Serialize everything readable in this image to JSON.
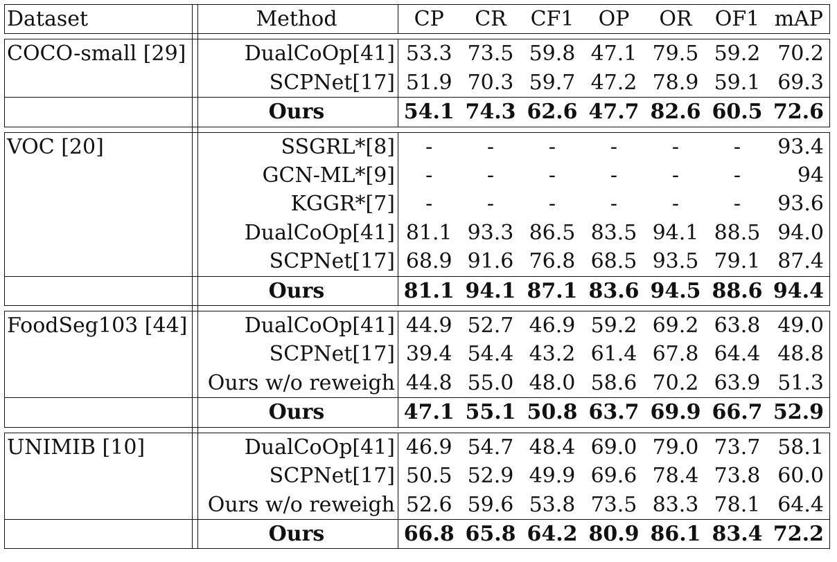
{
  "header": {
    "dataset": "Dataset",
    "method": "Method",
    "metrics": [
      "CP",
      "CR",
      "CF1",
      "OP",
      "OR",
      "OF1",
      "mAP"
    ]
  },
  "groups": [
    {
      "dataset": "COCO-small [29]",
      "rows": [
        {
          "method": "DualCoOp[41]",
          "values": [
            "53.3",
            "73.5",
            "59.8",
            "47.1",
            "79.5",
            "59.2",
            "70.2"
          ]
        },
        {
          "method": "SCPNet[17]",
          "values": [
            "51.9",
            "70.3",
            "59.7",
            "47.2",
            "78.9",
            "59.1",
            "69.3"
          ]
        },
        {
          "method": "Ours",
          "values": [
            "54.1",
            "74.3",
            "62.6",
            "47.7",
            "82.6",
            "60.5",
            "72.6"
          ]
        }
      ]
    },
    {
      "dataset": "VOC [20]",
      "rows": [
        {
          "method": "SSGRL*[8]",
          "values": [
            "-",
            "-",
            "-",
            "-",
            "-",
            "-",
            "93.4"
          ]
        },
        {
          "method": "GCN-ML*[9]",
          "values": [
            "-",
            "-",
            "-",
            "-",
            "-",
            "-",
            "94"
          ]
        },
        {
          "method": "KGGR*[7]",
          "values": [
            "-",
            "-",
            "-",
            "-",
            "-",
            "-",
            "93.6"
          ]
        },
        {
          "method": "DualCoOp[41]",
          "values": [
            "81.1",
            "93.3",
            "86.5",
            "83.5",
            "94.1",
            "88.5",
            "94.0"
          ]
        },
        {
          "method": "SCPNet[17]",
          "values": [
            "68.9",
            "91.6",
            "76.8",
            "68.5",
            "93.5",
            "79.1",
            "87.4"
          ]
        },
        {
          "method": "Ours",
          "values": [
            "81.1",
            "94.1",
            "87.1",
            "83.6",
            "94.5",
            "88.6",
            "94.4"
          ]
        }
      ]
    },
    {
      "dataset": "FoodSeg103 [44]",
      "rows": [
        {
          "method": "DualCoOp[41]",
          "values": [
            "44.9",
            "52.7",
            "46.9",
            "59.2",
            "69.2",
            "63.8",
            "49.0"
          ]
        },
        {
          "method": "SCPNet[17]",
          "values": [
            "39.4",
            "54.4",
            "43.2",
            "61.4",
            "67.8",
            "64.4",
            "48.8"
          ]
        },
        {
          "method": "Ours w/o reweigh",
          "values": [
            "44.8",
            "55.0",
            "48.0",
            "58.6",
            "70.2",
            "63.9",
            "51.3"
          ]
        },
        {
          "method": "Ours",
          "values": [
            "47.1",
            "55.1",
            "50.8",
            "63.7",
            "69.9",
            "66.7",
            "52.9"
          ]
        }
      ]
    },
    {
      "dataset": "UNIMIB [10]",
      "rows": [
        {
          "method": "DualCoOp[41]",
          "values": [
            "46.9",
            "54.7",
            "48.4",
            "69.0",
            "79.0",
            "73.7",
            "58.1"
          ]
        },
        {
          "method": "SCPNet[17]",
          "values": [
            "50.5",
            "52.9",
            "49.9",
            "69.6",
            "78.4",
            "73.8",
            "60.0"
          ]
        },
        {
          "method": "Ours w/o reweigh",
          "values": [
            "52.6",
            "59.6",
            "53.8",
            "73.5",
            "83.3",
            "78.1",
            "64.4"
          ]
        },
        {
          "method": "Ours",
          "values": [
            "66.8",
            "65.8",
            "64.2",
            "80.9",
            "86.1",
            "83.4",
            "72.2"
          ]
        }
      ]
    }
  ]
}
